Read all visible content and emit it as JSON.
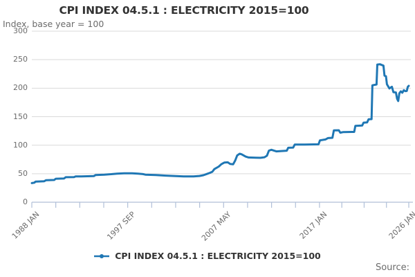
{
  "title": "CPI INDEX 04.5.1 : ELECTRICITY 2015=100",
  "subtitle": "Index, base year = 100",
  "source_label": "Source:",
  "legend": {
    "label": "CPI INDEX 04.5.1 : ELECTRICITY 2015=100",
    "marker": "line-dot-icon"
  },
  "colors": {
    "line": "#1f77b4",
    "grid": "#d9d9d9",
    "axis": "#b0bfd8",
    "text": "#6b6b6b",
    "title_text": "#333333"
  },
  "chart_data": {
    "type": "line",
    "title": "CPI INDEX 04.5.1 : ELECTRICITY 2015=100",
    "subtitle": "Index, base year = 100",
    "xlabel": "",
    "ylabel": "Index, base year = 100",
    "ylim": [
      0,
      300
    ],
    "yticks": [
      0,
      50,
      100,
      150,
      200,
      250,
      300
    ],
    "x_axis_unit": "months since 1988 JAN",
    "xlim_months": [
      0,
      456
    ],
    "xticks": [
      {
        "m": 0,
        "label": "1988 JAN"
      },
      {
        "m": 29
      },
      {
        "m": 58
      },
      {
        "m": 87
      },
      {
        "m": 116,
        "label": "1997 SEP"
      },
      {
        "m": 145
      },
      {
        "m": 174
      },
      {
        "m": 203
      },
      {
        "m": 232,
        "label": "2007 MAY"
      },
      {
        "m": 261
      },
      {
        "m": 290
      },
      {
        "m": 319
      },
      {
        "m": 348,
        "label": "2017 JAN"
      },
      {
        "m": 375
      },
      {
        "m": 402
      },
      {
        "m": 429
      },
      {
        "m": 456,
        "label": "2026 JAN"
      }
    ],
    "grid": "horizontal",
    "legend_position": "bottom-center",
    "series": [
      {
        "name": "CPI INDEX 04.5.1 : ELECTRICITY 2015=100",
        "color": "#1f77b4",
        "points": [
          [
            1988.0,
            33.5
          ],
          [
            1988.25,
            34.3
          ],
          [
            1988.38,
            36.2
          ],
          [
            1989.25,
            36.8
          ],
          [
            1989.42,
            38.5
          ],
          [
            1990.25,
            39.0
          ],
          [
            1990.42,
            41.2
          ],
          [
            1991.25,
            41.6
          ],
          [
            1991.42,
            43.8
          ],
          [
            1992.25,
            44.0
          ],
          [
            1992.42,
            45.2
          ],
          [
            1993.0,
            45.3
          ],
          [
            1993.6,
            45.6
          ],
          [
            1994.25,
            45.8
          ],
          [
            1994.42,
            47.6
          ],
          [
            1995.3,
            48.4
          ],
          [
            1996.0,
            49.2
          ],
          [
            1996.6,
            50.2
          ],
          [
            1997.3,
            50.8
          ],
          [
            1998.1,
            50.7
          ],
          [
            1998.7,
            50.0
          ],
          [
            1999.2,
            49.3
          ],
          [
            1999.45,
            48.4
          ],
          [
            2000.5,
            47.7
          ],
          [
            2001.5,
            46.7
          ],
          [
            2002.5,
            45.8
          ],
          [
            2003.3,
            45.2
          ],
          [
            2004.3,
            45.2
          ],
          [
            2004.9,
            46.0
          ],
          [
            2005.3,
            47.4
          ],
          [
            2005.65,
            49.6
          ],
          [
            2005.95,
            51.5
          ],
          [
            2006.2,
            53.5
          ],
          [
            2006.4,
            58.0
          ],
          [
            2006.85,
            62.5
          ],
          [
            2007.1,
            66.5
          ],
          [
            2007.4,
            69.5
          ],
          [
            2007.75,
            70.0
          ],
          [
            2008.0,
            67.0
          ],
          [
            2008.3,
            66.5
          ],
          [
            2008.5,
            73.0
          ],
          [
            2008.7,
            82.0
          ],
          [
            2008.95,
            85.0
          ],
          [
            2009.15,
            84.0
          ],
          [
            2009.55,
            80.0
          ],
          [
            2009.85,
            78.5
          ],
          [
            2010.6,
            78.0
          ],
          [
            2011.05,
            77.8
          ],
          [
            2011.45,
            78.8
          ],
          [
            2011.7,
            81.5
          ],
          [
            2011.9,
            90.5
          ],
          [
            2012.15,
            92.0
          ],
          [
            2012.65,
            89.2
          ],
          [
            2013.15,
            89.8
          ],
          [
            2013.7,
            90.4
          ],
          [
            2013.85,
            95.5
          ],
          [
            2014.35,
            95.8
          ],
          [
            2014.5,
            101.0
          ],
          [
            2015.5,
            101.2
          ],
          [
            2016.9,
            101.5
          ],
          [
            2017.05,
            108.5
          ],
          [
            2017.6,
            110.0
          ],
          [
            2017.85,
            112.5
          ],
          [
            2018.3,
            113.0
          ],
          [
            2018.45,
            126.0
          ],
          [
            2018.95,
            126.2
          ],
          [
            2019.1,
            122.0
          ],
          [
            2019.4,
            123.0
          ],
          [
            2020.5,
            123.3
          ],
          [
            2020.62,
            134.0
          ],
          [
            2021.3,
            134.5
          ],
          [
            2021.45,
            139.5
          ],
          [
            2021.8,
            140.0
          ],
          [
            2021.95,
            145.5
          ],
          [
            2022.25,
            145.8
          ],
          [
            2022.33,
            205.0
          ],
          [
            2022.75,
            206.5
          ],
          [
            2022.83,
            241.5
          ],
          [
            2023.1,
            242.0
          ],
          [
            2023.45,
            239.5
          ],
          [
            2023.55,
            222.0
          ],
          [
            2023.7,
            221.0
          ],
          [
            2023.8,
            207.0
          ],
          [
            2024.05,
            199.5
          ],
          [
            2024.3,
            202.5
          ],
          [
            2024.45,
            193.0
          ],
          [
            2024.7,
            192.5
          ],
          [
            2024.82,
            181.5
          ],
          [
            2024.93,
            177.5
          ],
          [
            2025.05,
            191.0
          ],
          [
            2025.2,
            194.5
          ],
          [
            2025.35,
            192.0
          ],
          [
            2025.5,
            196.5
          ],
          [
            2025.65,
            194.8
          ],
          [
            2025.8,
            195.0
          ],
          [
            2025.9,
            202.5
          ],
          [
            2026.0,
            204.0
          ]
        ]
      }
    ]
  }
}
